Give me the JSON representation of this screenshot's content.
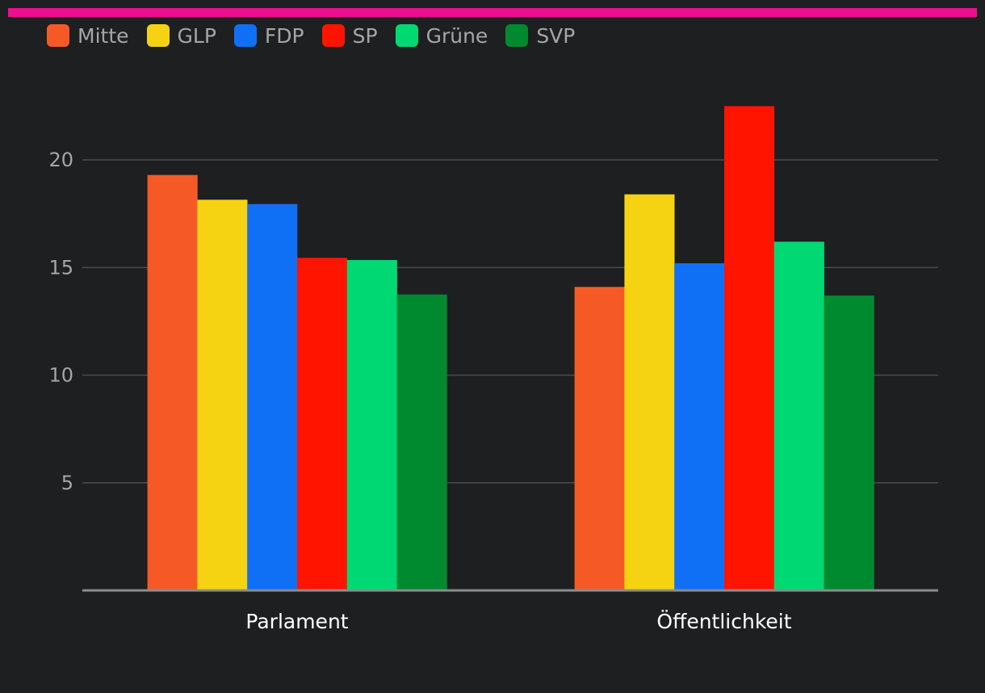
{
  "header": {
    "accent_color": "#ec108f"
  },
  "chart_data": {
    "type": "bar",
    "title": "",
    "xlabel": "",
    "ylabel": "",
    "ylim": [
      0,
      23
    ],
    "yticks": [
      5,
      10,
      15,
      20
    ],
    "grid": true,
    "legend_position": "top-left",
    "categories": [
      "Parlament",
      "Öffentlichkeit"
    ],
    "series": [
      {
        "name": "Mitte",
        "color": "#f55a26",
        "values": [
          19.3,
          14.1
        ]
      },
      {
        "name": "GLP",
        "color": "#f5d312",
        "values": [
          18.15,
          18.4
        ]
      },
      {
        "name": "FDP",
        "color": "#1070f5",
        "values": [
          17.95,
          15.2
        ]
      },
      {
        "name": "SP",
        "color": "#ff1400",
        "values": [
          15.45,
          22.5
        ]
      },
      {
        "name": "Grüne",
        "color": "#00d873",
        "values": [
          15.35,
          16.2
        ]
      },
      {
        "name": "SVP",
        "color": "#008a30",
        "values": [
          13.75,
          13.7
        ]
      }
    ]
  }
}
